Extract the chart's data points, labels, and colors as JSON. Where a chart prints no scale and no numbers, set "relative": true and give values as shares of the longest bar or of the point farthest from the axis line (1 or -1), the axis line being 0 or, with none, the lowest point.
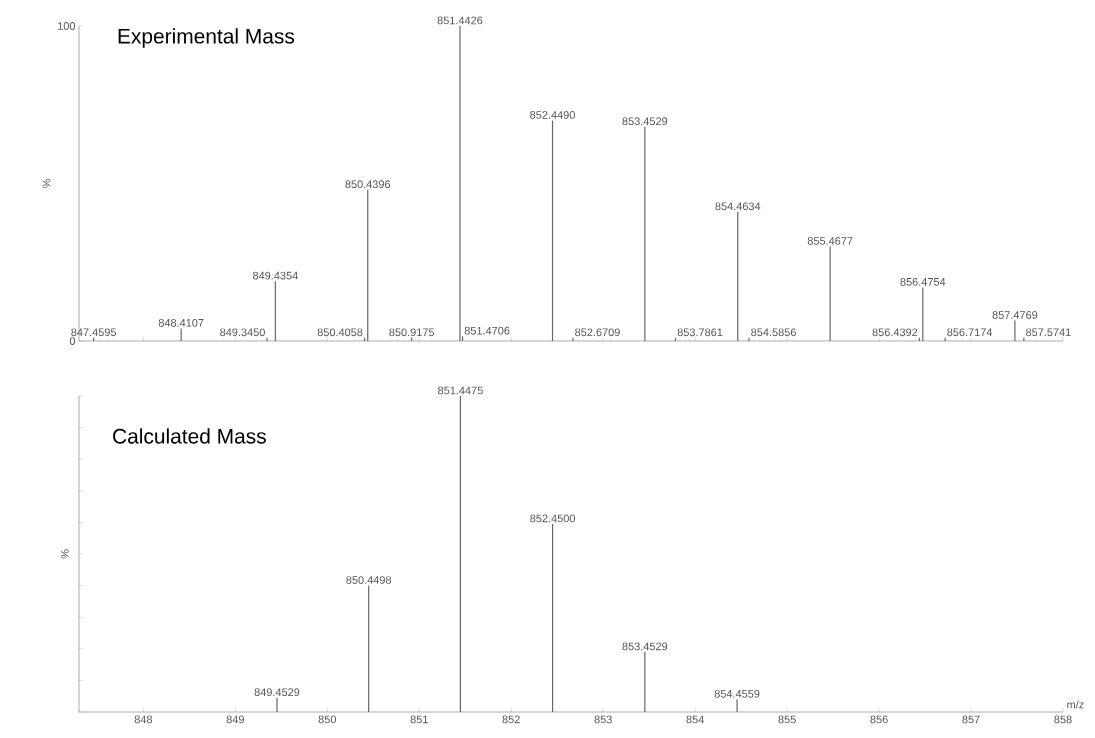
{
  "chart_data": [
    {
      "type": "bar",
      "title": "Experimental Mass",
      "ylabel": "%",
      "color": "#666666",
      "x": [
        847.4595,
        848.4107,
        849.345,
        849.4354,
        850.4058,
        850.4396,
        850.9175,
        851.4426,
        851.4706,
        852.449,
        852.6709,
        853.4529,
        853.7861,
        854.4634,
        854.5856,
        855.4677,
        856.4392,
        856.4754,
        856.7174,
        857.4769,
        857.5741
      ],
      "values": [
        1,
        4,
        1,
        19,
        1,
        48,
        1,
        100,
        1.5,
        70,
        1,
        68,
        1,
        41,
        1,
        30,
        1,
        17,
        1,
        6.5,
        1
      ],
      "annotations": [
        {
          "text": "847.4595",
          "x": 847.4595,
          "y": 1
        },
        {
          "text": "848.4107",
          "x": 848.4107,
          "y": 4
        },
        {
          "text": "849.3450",
          "x": 849.345,
          "y": 1
        },
        {
          "text": "849.4354",
          "x": 849.4354,
          "y": 19
        },
        {
          "text": "850.4058",
          "x": 850.4058,
          "y": 1
        },
        {
          "text": "850.4396",
          "x": 850.4396,
          "y": 48
        },
        {
          "text": "850.9175",
          "x": 850.9175,
          "y": 1
        },
        {
          "text": "851.4426",
          "x": 851.4426,
          "y": 100
        },
        {
          "text": "851.4706",
          "x": 851.4706,
          "y": 1.5
        },
        {
          "text": "852.4490",
          "x": 852.449,
          "y": 70
        },
        {
          "text": "852.6709",
          "x": 852.6709,
          "y": 1
        },
        {
          "text": "853.4529",
          "x": 853.4529,
          "y": 68
        },
        {
          "text": "853.7861",
          "x": 853.7861,
          "y": 1
        },
        {
          "text": "854.4634",
          "x": 854.4634,
          "y": 41
        },
        {
          "text": "854.5856",
          "x": 854.5856,
          "y": 1
        },
        {
          "text": "855.4677",
          "x": 855.4677,
          "y": 30
        },
        {
          "text": "856.4392",
          "x": 856.4392,
          "y": 1
        },
        {
          "text": "856.4754",
          "x": 856.4754,
          "y": 17
        },
        {
          "text": "856.7174",
          "x": 856.7174,
          "y": 1
        },
        {
          "text": "857.4769",
          "x": 857.4769,
          "y": 6.5
        },
        {
          "text": "857.5741",
          "x": 857.5741,
          "y": 1
        }
      ],
      "xlim": [
        847.3,
        858
      ],
      "xticks": [
        848,
        849,
        850,
        851,
        852,
        853,
        854,
        855,
        856,
        857,
        858
      ],
      "ylim": [
        0,
        100
      ],
      "yticks": [
        0,
        100
      ],
      "tick_labels": "y"
    },
    {
      "type": "bar",
      "title": "Calculated Mass",
      "ylabel": "%",
      "xlabel": "m/z",
      "color": "#666666",
      "relative": true,
      "x": [
        849.4529,
        850.4498,
        851.4475,
        852.45,
        853.4529,
        854.4559
      ],
      "values": [
        0.045,
        0.4,
        1,
        0.595,
        0.19,
        0.04
      ],
      "annotations": [
        {
          "text": "849.4529",
          "x": 849.4529,
          "y": 0.045
        },
        {
          "text": "850.4498",
          "x": 850.4498,
          "y": 0.4
        },
        {
          "text": "851.4475",
          "x": 851.4475,
          "y": 1
        },
        {
          "text": "852.4500",
          "x": 852.45,
          "y": 0.595
        },
        {
          "text": "853.4529",
          "x": 853.4529,
          "y": 0.19
        },
        {
          "text": "854.4559",
          "x": 854.4559,
          "y": 0.04
        }
      ],
      "xlim": [
        847.3,
        858
      ],
      "xticks": [
        848,
        849,
        850,
        851,
        852,
        853,
        854,
        855,
        856,
        857,
        858
      ]
    }
  ]
}
